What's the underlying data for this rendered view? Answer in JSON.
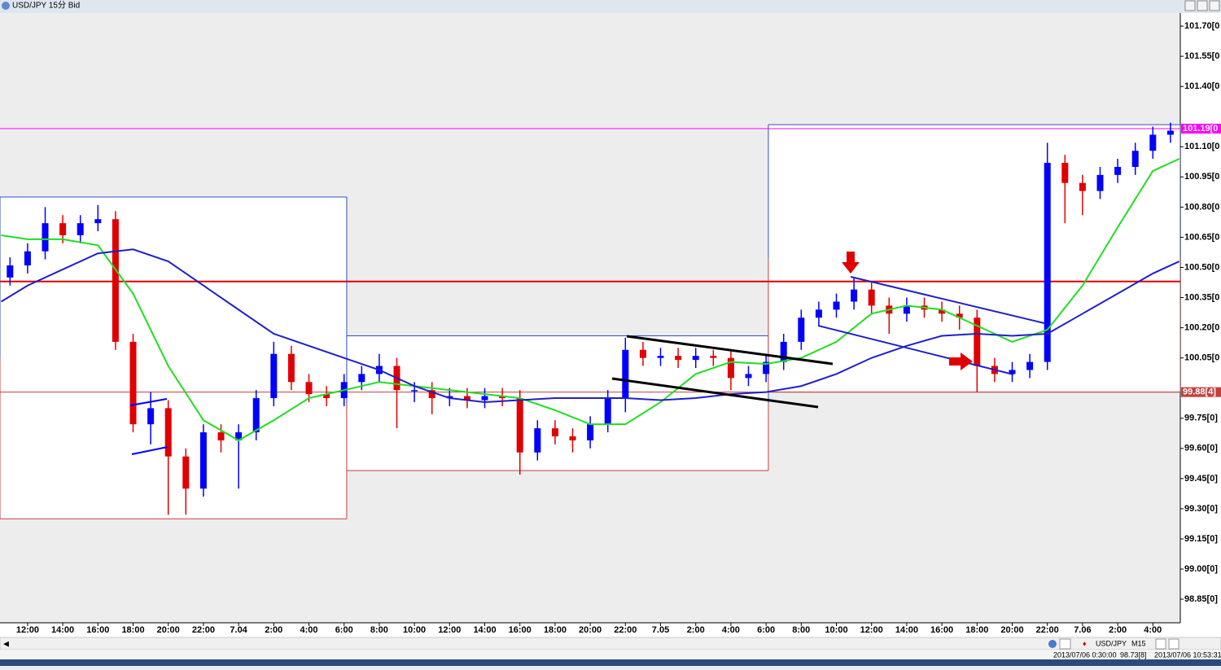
{
  "window_title": "USD/JPY 15分 Bid",
  "chart_data": {
    "type": "candlestick",
    "x": [
      -1,
      0,
      1,
      2,
      3,
      4,
      5,
      6,
      7,
      8,
      9,
      10,
      11,
      12,
      13,
      14,
      15,
      16,
      17,
      18,
      19,
      20,
      21,
      22,
      23,
      24,
      25,
      26,
      27,
      28,
      29,
      30,
      31,
      32,
      33,
      34,
      35,
      36,
      37,
      38,
      39,
      40,
      41,
      42,
      43,
      44,
      45,
      46,
      47,
      48,
      49,
      50,
      51,
      52,
      53,
      54,
      55,
      56,
      57,
      58,
      59,
      60,
      61,
      62,
      63,
      64,
      65
    ],
    "open": [
      100.45,
      100.51,
      100.58,
      100.72,
      100.66,
      100.72,
      100.74,
      100.13,
      99.72,
      99.8,
      99.56,
      99.4,
      99.68,
      99.64,
      99.68,
      99.85,
      100.07,
      99.93,
      99.87,
      99.85,
      99.93,
      99.97,
      100.01,
      99.89,
      99.89,
      99.85,
      99.86,
      99.84,
      99.86,
      99.85,
      99.58,
      99.7,
      99.66,
      99.64,
      99.72,
      99.85,
      100.09,
      100.05,
      100.06,
      100.04,
      100.06,
      100.05,
      99.95,
      99.97,
      100.03,
      100.13,
      100.25,
      100.29,
      100.33,
      100.39,
      100.31,
      100.27,
      100.31,
      100.29,
      100.27,
      100.25,
      100.01,
      99.97,
      99.99,
      100.03,
      101.02,
      100.92,
      100.88,
      100.96,
      101.0,
      101.08,
      101.16
    ],
    "high": [
      100.55,
      100.62,
      100.8,
      100.76,
      100.76,
      100.81,
      100.78,
      100.17,
      99.88,
      99.84,
      99.6,
      99.72,
      99.72,
      99.72,
      99.89,
      100.13,
      100.11,
      99.97,
      99.91,
      99.97,
      100.01,
      100.07,
      100.05,
      99.93,
      99.93,
      99.9,
      99.9,
      99.9,
      99.9,
      99.89,
      99.74,
      99.74,
      99.7,
      99.76,
      99.89,
      100.15,
      100.13,
      100.1,
      100.1,
      100.1,
      100.09,
      100.09,
      100.01,
      100.07,
      100.17,
      100.29,
      100.33,
      100.37,
      100.45,
      100.43,
      100.35,
      100.35,
      100.35,
      100.33,
      100.31,
      100.29,
      100.05,
      100.03,
      100.07,
      101.12,
      101.06,
      100.96,
      101.0,
      101.04,
      101.12,
      101.2,
      101.22
    ],
    "low": [
      100.41,
      100.47,
      100.54,
      100.62,
      100.62,
      100.68,
      100.09,
      99.68,
      99.62,
      99.27,
      99.27,
      99.36,
      99.58,
      99.4,
      99.64,
      99.81,
      99.89,
      99.83,
      99.81,
      99.81,
      99.89,
      99.93,
      99.7,
      99.83,
      99.77,
      99.81,
      99.8,
      99.8,
      99.81,
      99.47,
      99.54,
      99.62,
      99.58,
      99.6,
      99.68,
      99.78,
      100.01,
      100.01,
      100.0,
      100.0,
      100.01,
      99.89,
      99.91,
      99.93,
      99.99,
      100.09,
      100.21,
      100.25,
      100.29,
      100.27,
      100.17,
      100.23,
      100.25,
      100.23,
      100.19,
      99.88,
      99.93,
      99.93,
      99.95,
      99.99,
      100.72,
      100.76,
      100.84,
      100.92,
      100.96,
      101.04,
      101.12
    ],
    "close": [
      100.51,
      100.58,
      100.72,
      100.66,
      100.72,
      100.74,
      100.13,
      99.72,
      99.8,
      99.56,
      99.4,
      99.68,
      99.64,
      99.68,
      99.85,
      100.07,
      99.93,
      99.87,
      99.85,
      99.93,
      99.97,
      100.01,
      99.89,
      99.89,
      99.85,
      99.86,
      99.84,
      99.86,
      99.85,
      99.58,
      99.7,
      99.66,
      99.64,
      99.72,
      99.85,
      100.09,
      100.05,
      100.06,
      100.04,
      100.06,
      100.05,
      99.95,
      99.97,
      100.03,
      100.13,
      100.25,
      100.29,
      100.33,
      100.39,
      100.31,
      100.27,
      100.31,
      100.29,
      100.27,
      100.25,
      100.01,
      99.97,
      99.99,
      100.03,
      101.02,
      100.92,
      100.88,
      100.96,
      101.0,
      101.08,
      101.16,
      101.18
    ],
    "up_color": "#0000ff",
    "down_color": "#e00000",
    "series": [
      {
        "color": "#22dd22",
        "x": [
          -1.5,
          0,
          2,
          4,
          6,
          8,
          10,
          12,
          14,
          16,
          18,
          20,
          22,
          24,
          26,
          28,
          30,
          32,
          34,
          36,
          38,
          40,
          42,
          44,
          46,
          48,
          50,
          52,
          54,
          56,
          58,
          60,
          62,
          64,
          65.5
        ],
        "values": [
          100.66,
          100.64,
          100.64,
          100.61,
          100.37,
          100.01,
          99.74,
          99.64,
          99.74,
          99.85,
          99.89,
          99.93,
          99.91,
          99.89,
          99.87,
          99.85,
          99.79,
          99.72,
          99.72,
          99.83,
          99.97,
          100.03,
          100.02,
          100.05,
          100.13,
          100.27,
          100.31,
          100.29,
          100.21,
          100.13,
          100.19,
          100.41,
          100.7,
          100.98,
          101.04
        ]
      },
      {
        "color": "#2020c8",
        "x": [
          -1.5,
          0,
          2,
          4,
          6,
          8,
          10,
          12,
          14,
          16,
          18,
          20,
          22,
          24,
          26,
          28,
          30,
          32,
          34,
          36,
          38,
          40,
          42,
          44,
          46,
          48,
          50,
          52,
          54,
          56,
          58,
          60,
          62,
          64,
          65.5
        ],
        "values": [
          100.33,
          100.41,
          100.49,
          100.57,
          100.59,
          100.53,
          100.41,
          100.29,
          100.17,
          100.11,
          100.05,
          99.99,
          99.91,
          99.85,
          99.83,
          99.84,
          99.85,
          99.85,
          99.85,
          99.84,
          99.85,
          99.87,
          99.88,
          99.91,
          99.97,
          100.05,
          100.11,
          100.16,
          100.17,
          100.16,
          100.17,
          100.27,
          100.37,
          100.47,
          100.53
        ]
      }
    ],
    "sessions": [
      {
        "x": [
          -1.57,
          18.15
        ],
        "high": 100.85,
        "low": 99.25
      },
      {
        "x": [
          18.15,
          42.13
        ],
        "high": 100.16,
        "low": 99.49
      },
      {
        "x": [
          42.13,
          65.56
        ],
        "high": 101.21,
        "low": 99.88
      }
    ],
    "levels": [
      {
        "value": 100.43,
        "color": "#e00000"
      },
      {
        "value": 101.19,
        "label": "101.19[0",
        "color": "#ff00ff"
      },
      {
        "value": 99.88,
        "label": "99.88[4]",
        "color": "#c04040"
      }
    ],
    "xlim": [
      -1.57,
      65.56
    ],
    "ylim": [
      98.745,
      101.757
    ],
    "xticks": [
      {
        "value": 0,
        "label": "12:00"
      },
      {
        "value": 2,
        "label": "14:00"
      },
      {
        "value": 4,
        "label": "16:00"
      },
      {
        "value": 6,
        "label": "18:00"
      },
      {
        "value": 8,
        "label": "20:00"
      },
      {
        "value": 10,
        "label": "22:00"
      },
      {
        "value": 12,
        "label": "7.04"
      },
      {
        "value": 14,
        "label": "2:00"
      },
      {
        "value": 16,
        "label": "4:00"
      },
      {
        "value": 18,
        "label": "6:00"
      },
      {
        "value": 20,
        "label": "8:00"
      },
      {
        "value": 22,
        "label": "10:00"
      },
      {
        "value": 24,
        "label": "12:00"
      },
      {
        "value": 26,
        "label": "14:00"
      },
      {
        "value": 28,
        "label": "16:00"
      },
      {
        "value": 30,
        "label": "18:00"
      },
      {
        "value": 32,
        "label": "20:00"
      },
      {
        "value": 34,
        "label": "22:00"
      },
      {
        "value": 36,
        "label": "7.05"
      },
      {
        "value": 38,
        "label": "2:00"
      },
      {
        "value": 40,
        "label": "4:00"
      },
      {
        "value": 42,
        "label": "6:00"
      },
      {
        "value": 44,
        "label": "8:00"
      },
      {
        "value": 46,
        "label": "10:00"
      },
      {
        "value": 48,
        "label": "12:00"
      },
      {
        "value": 50,
        "label": "14:00"
      },
      {
        "value": 52,
        "label": "16:00"
      },
      {
        "value": 54,
        "label": "18:00"
      },
      {
        "value": 56,
        "label": "20:00"
      },
      {
        "value": 58,
        "label": "22:00"
      },
      {
        "value": 60,
        "label": "7.06"
      },
      {
        "value": 62,
        "label": "2:00"
      },
      {
        "value": 64,
        "label": "4:00"
      }
    ],
    "yticks": [
      {
        "value": 101.7,
        "label": "101.70[0"
      },
      {
        "value": 101.55,
        "label": "101.55[0"
      },
      {
        "value": 101.4,
        "label": "101.40[0"
      },
      {
        "value": 101.1,
        "label": "101.10[0"
      },
      {
        "value": 100.95,
        "label": "100.95[0"
      },
      {
        "value": 100.8,
        "label": "100.80[0"
      },
      {
        "value": 100.65,
        "label": "100.65[0"
      },
      {
        "value": 100.5,
        "label": "100.50[0"
      },
      {
        "value": 100.35,
        "label": "100.35[0"
      },
      {
        "value": 100.2,
        "label": "100.20[0"
      },
      {
        "value": 100.05,
        "label": "100.05[0"
      },
      {
        "value": 99.75,
        "label": "99.75[0]"
      },
      {
        "value": 99.6,
        "label": "99.60[0]"
      },
      {
        "value": 99.45,
        "label": "99.45[0]"
      },
      {
        "value": 99.3,
        "label": "99.30[0]"
      },
      {
        "value": 99.15,
        "label": "99.15[0]"
      },
      {
        "value": 99.0,
        "label": "99.00[0]"
      },
      {
        "value": 98.85,
        "label": "98.85[0]"
      }
    ]
  },
  "toolbar": {
    "symbol": "USD/JPY",
    "timeframe": "M15"
  },
  "status": {
    "time": "2013/07/06 0:30:00",
    "price": "98.73[8]",
    "clock": "2013/07/06 10:53:31"
  }
}
